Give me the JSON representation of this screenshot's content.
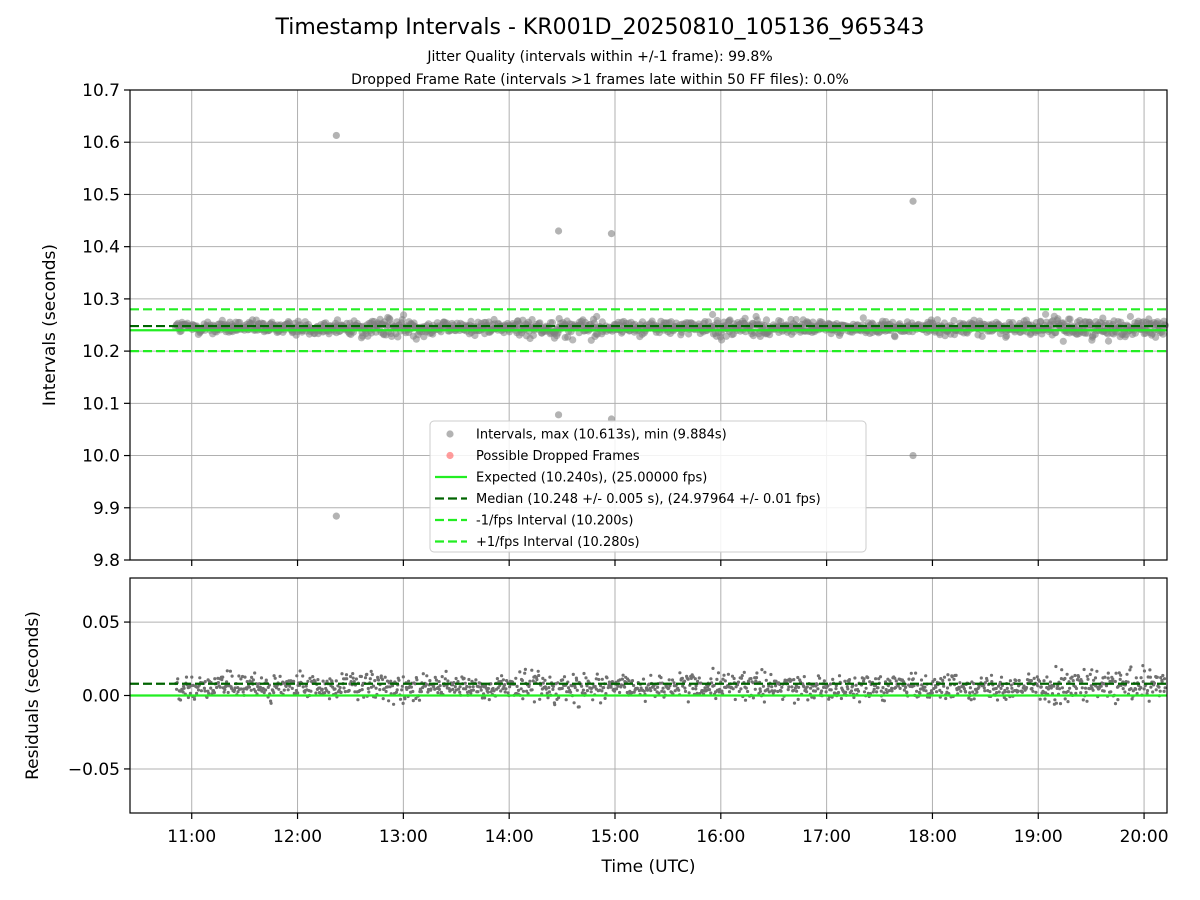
{
  "figure": {
    "title": "Timestamp Intervals - KR001D_20250810_105136_965343",
    "subtitle_jitter": "Jitter Quality (intervals within +/-1 frame): 99.8%",
    "subtitle_dropped": "Dropped Frame Rate (intervals >1 frames late within 50 FF files): 0.0%"
  },
  "colors": {
    "points": "#808080",
    "dropped": "#ff5a5a",
    "expected": "#22ee22",
    "median": "#006400",
    "bounds": "#22ee22",
    "grid": "#b0b0b0"
  },
  "chart_data": [
    {
      "type": "scatter",
      "name": "intervals-panel",
      "xlabel": "",
      "ylabel": "Intervals (seconds)",
      "xlim": [
        "10:25",
        "20:13"
      ],
      "ylim": [
        9.8,
        10.7
      ],
      "yticks": [
        9.8,
        9.9,
        10.0,
        10.1,
        10.2,
        10.3,
        10.4,
        10.5,
        10.6,
        10.7
      ],
      "ytick_labels": [
        "9.8",
        "9.9",
        "10.0",
        "10.1",
        "10.2",
        "10.3",
        "10.4",
        "10.5",
        "10.6",
        "10.7"
      ],
      "xticks": [
        "11:00",
        "12:00",
        "13:00",
        "14:00",
        "15:00",
        "16:00",
        "17:00",
        "18:00",
        "19:00",
        "20:00"
      ],
      "grid": true,
      "legend_position": "lower-center",
      "lines": [
        {
          "name": "Expected (10.240s), (25.00000 fps)",
          "y": 10.24,
          "style": "solid",
          "color": "#22ee22"
        },
        {
          "name": "Median (10.248 +/- 0.005 s), (24.97964 +/- 0.01 fps)",
          "y": 10.248,
          "style": "dashed",
          "color": "#006400"
        },
        {
          "name": "-1/fps Interval (10.200s)",
          "y": 10.2,
          "style": "dashed",
          "color": "#22ee22"
        },
        {
          "name": "+1/fps Interval (10.280s)",
          "y": 10.28,
          "style": "dashed",
          "color": "#22ee22"
        }
      ],
      "series": [
        {
          "name": "Intervals, max (10.613s), min (9.884s)",
          "kind": "points",
          "color": "#808080",
          "band": {
            "x_start": "10:51",
            "x_end": "20:12",
            "center": 10.245,
            "spread": 0.012
          },
          "outliers": [
            {
              "x": "12:22",
              "y": 10.613
            },
            {
              "x": "12:22",
              "y": 9.884
            },
            {
              "x": "14:28",
              "y": 10.43
            },
            {
              "x": "14:28",
              "y": 10.078
            },
            {
              "x": "14:58",
              "y": 10.425
            },
            {
              "x": "14:58",
              "y": 10.07
            },
            {
              "x": "17:49",
              "y": 10.487
            },
            {
              "x": "17:49",
              "y": 10.0
            }
          ]
        },
        {
          "name": "Possible Dropped Frames",
          "kind": "points",
          "color": "#ff5a5a",
          "points": []
        }
      ]
    },
    {
      "type": "scatter",
      "name": "residuals-panel",
      "xlabel": "Time (UTC)",
      "ylabel": "Residuals (seconds)",
      "xlim": [
        "10:25",
        "20:13"
      ],
      "ylim": [
        -0.08,
        0.08
      ],
      "yticks": [
        -0.05,
        0.0,
        0.05
      ],
      "ytick_labels": [
        "−0.05",
        "0.00",
        "0.05"
      ],
      "xticks": [
        "11:00",
        "12:00",
        "13:00",
        "14:00",
        "15:00",
        "16:00",
        "17:00",
        "18:00",
        "19:00",
        "20:00"
      ],
      "grid": true,
      "lines": [
        {
          "y": 0.0,
          "style": "solid",
          "color": "#22ee22"
        },
        {
          "y": 0.008,
          "style": "dashed",
          "color": "#006400"
        }
      ],
      "series": [
        {
          "name": "",
          "kind": "points",
          "color": "#707070",
          "band": {
            "x_start": "10:51",
            "x_end": "20:12",
            "center": 0.006,
            "spread": 0.007
          }
        }
      ]
    }
  ]
}
